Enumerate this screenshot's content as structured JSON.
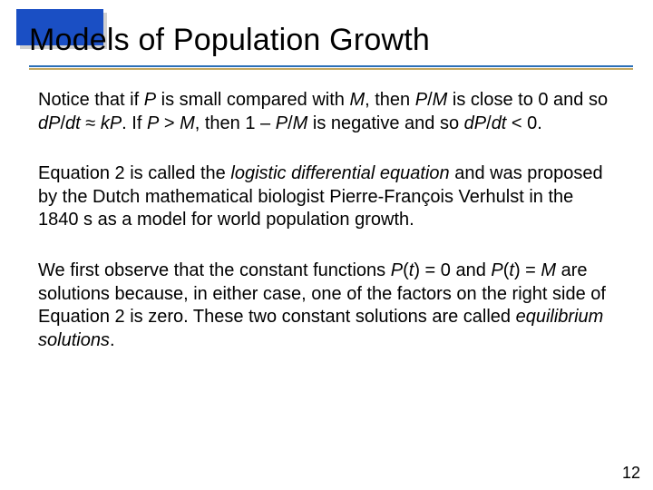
{
  "colors": {
    "corner_box": "#1a4fc4",
    "corner_shadow": "#d0d0d0",
    "underline_primary": "#2b6fb8",
    "underline_secondary": "#c4a860",
    "background": "#ffffff",
    "text": "#000000"
  },
  "typography": {
    "title_fontsize": 34,
    "body_fontsize": 20,
    "pagenum_fontsize": 18,
    "font_family": "Arial"
  },
  "title": "Models of Population Growth",
  "para1": {
    "t1": "Notice that if ",
    "i1": "P",
    "t2": " is small compared with ",
    "i2": "M",
    "t3": ", then ",
    "i3": "P",
    "t4": "/",
    "i4": "M",
    "t5": " is close to 0 and so ",
    "i5": "dP",
    "t6": "/",
    "i6": "dt",
    "t7": " ≈ ",
    "i7": "kP",
    "t8": ". If ",
    "i8": "P",
    "t9": " > ",
    "i9": "M",
    "t10": ", then 1 – ",
    "i10": "P",
    "t11": "/",
    "i11": "M",
    "t12": " is negative and so ",
    "i12": "dP",
    "t13": "/",
    "i13": "dt",
    "t14": " < 0."
  },
  "para2": {
    "t1": "Equation 2 is called the ",
    "i1": "logistic differential equation",
    "t2": " and was proposed by the Dutch mathematical biologist Pierre-François Verhulst in the 1840 s as a model for world population growth."
  },
  "para3": {
    "t1": "We first observe that the constant functions ",
    "i1": "P",
    "t2": "(",
    "i2": "t",
    "t3": ") = 0 and ",
    "i3": "P",
    "t4": "(",
    "i4": "t",
    "t5": ") = ",
    "i5": "M",
    "t6": " are solutions because, in either case, one of the factors on the right side of Equation 2 is zero. These two constant solutions are called ",
    "i6": "equilibrium solutions",
    "t7": "."
  },
  "page_number": "12"
}
